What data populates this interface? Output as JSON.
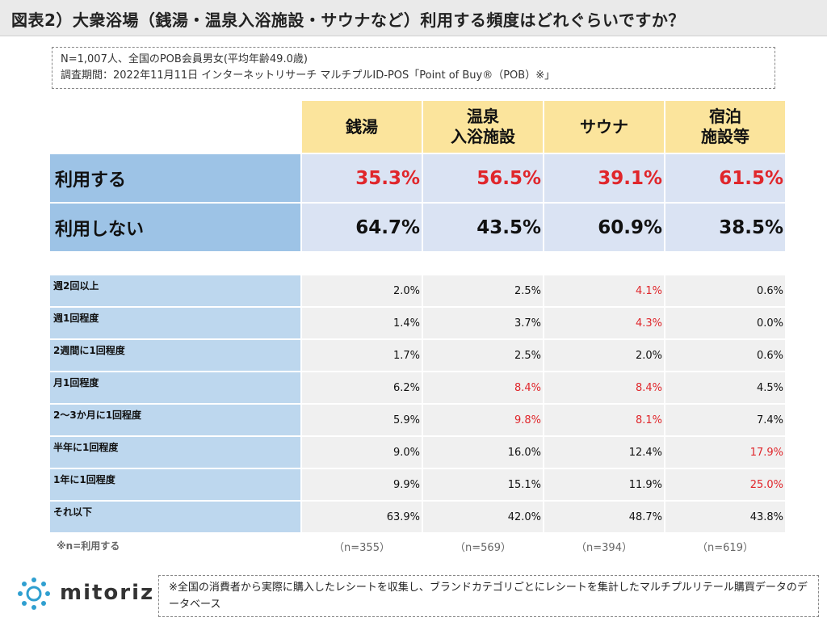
{
  "title": "図表2）大衆浴場（銭湯・温泉入浴施設・サウナなど）利用する頻度はどれぐらいですか？",
  "survey_note": {
    "line1": "N=1,007人、全国のPOB会員男女(平均年齢49.0歳)",
    "line2": "調査期間：2022年11月11日 インターネットリサーチ マルチプルID-POS「Point of Buy®（POB）※」"
  },
  "columns": [
    "銭湯",
    "温泉\n入浴施設",
    "サウナ",
    "宿泊\n施設等"
  ],
  "usage_rows": [
    {
      "label": "利用する",
      "values": [
        "35.3%",
        "56.5%",
        "39.1%",
        "61.5%"
      ],
      "highlight": [
        true,
        true,
        true,
        true
      ]
    },
    {
      "label": "利用しない",
      "values": [
        "64.7%",
        "43.5%",
        "60.9%",
        "38.5%"
      ],
      "highlight": [
        false,
        false,
        false,
        false
      ]
    }
  ],
  "frequency_rows": [
    {
      "label": "週2回以上",
      "values": [
        "2.0%",
        "2.5%",
        "4.1%",
        "0.6%"
      ],
      "highlight": [
        false,
        false,
        true,
        false
      ]
    },
    {
      "label": "週1回程度",
      "values": [
        "1.4%",
        "3.7%",
        "4.3%",
        "0.0%"
      ],
      "highlight": [
        false,
        false,
        true,
        false
      ]
    },
    {
      "label": "2週間に1回程度",
      "values": [
        "1.7%",
        "2.5%",
        "2.0%",
        "0.6%"
      ],
      "highlight": [
        false,
        false,
        false,
        false
      ]
    },
    {
      "label": "月1回程度",
      "values": [
        "6.2%",
        "8.4%",
        "8.4%",
        "4.5%"
      ],
      "highlight": [
        false,
        true,
        true,
        false
      ]
    },
    {
      "label": "2～3か月に1回程度",
      "values": [
        "5.9%",
        "9.8%",
        "8.1%",
        "7.4%"
      ],
      "highlight": [
        false,
        true,
        true,
        false
      ]
    },
    {
      "label": "半年に1回程度",
      "values": [
        "9.0%",
        "16.0%",
        "12.4%",
        "17.9%"
      ],
      "highlight": [
        false,
        false,
        false,
        true
      ]
    },
    {
      "label": "1年に1回程度",
      "values": [
        "9.9%",
        "15.1%",
        "11.9%",
        "25.0%"
      ],
      "highlight": [
        false,
        false,
        false,
        true
      ]
    },
    {
      "label": "それ以下",
      "values": [
        "63.9%",
        "42.0%",
        "48.7%",
        "43.8%"
      ],
      "highlight": [
        false,
        false,
        false,
        false
      ]
    }
  ],
  "n_note": "※n=利用する",
  "n_values": [
    "（n=355）",
    "（n=569）",
    "（n=394）",
    "（n=619）"
  ],
  "logo_text": "mitoriz",
  "footnote": "※全国の消費者から実際に購入したレシートを収集し、ブランドカテゴリごとにレシートを集計したマルチプルリテール購買データのデータベース",
  "colors": {
    "header_fill": "#fbe49c",
    "label_fill": "#9dc3e6",
    "value_fill": "#dae3f3",
    "freq_label_fill": "#bdd7ee",
    "freq_value_fill": "#f0f0f0",
    "highlight_text": "#e0262b",
    "logo_accent": "#2f9fd0"
  }
}
